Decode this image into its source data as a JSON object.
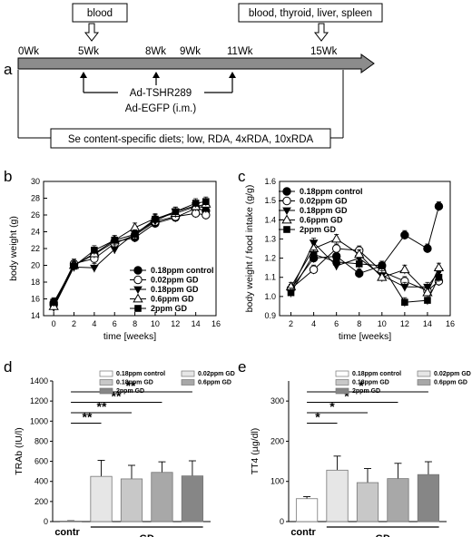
{
  "panels": {
    "a": "a",
    "b": "b",
    "c": "c",
    "d": "d",
    "e": "e"
  },
  "timeline": {
    "weeks": [
      "0Wk",
      "5Wk",
      "8Wk",
      "9Wk",
      "11Wk",
      "15Wk"
    ],
    "week_values": [
      0,
      5,
      8,
      9,
      11,
      15
    ],
    "box_blood": "blood",
    "box_tissues": "blood, thyroid, liver, spleen",
    "inj_line1": "Ad-TSHR289",
    "inj_line2": "Ad-EGFP (i.m.)",
    "diet": "Se content-specific diets; low, RDA, 4xRDA, 10xRDA"
  },
  "chart_data": [
    {
      "panel": "b",
      "type": "line",
      "xlabel": "time [weeks]",
      "ylabel": "body weight (g)",
      "xlim": [
        -1,
        16
      ],
      "ylim": [
        14,
        30
      ],
      "xticks": [
        0,
        2,
        4,
        6,
        8,
        10,
        12,
        14,
        16
      ],
      "yticks": [
        14,
        16,
        18,
        20,
        22,
        24,
        26,
        28,
        30
      ],
      "x": [
        0,
        2,
        4,
        6,
        8,
        10,
        12,
        14,
        15
      ],
      "series": [
        {
          "name": "0.18ppm control",
          "marker": "circle-filled",
          "values": [
            15.5,
            20.0,
            21.3,
            22.8,
            23.3,
            25.0,
            25.7,
            26.8,
            26.5
          ]
        },
        {
          "name": "0.02ppm GD",
          "marker": "circle-open",
          "values": [
            15.3,
            20.2,
            20.8,
            22.6,
            23.6,
            25.2,
            25.8,
            26.2,
            26.0
          ]
        },
        {
          "name": "0.18ppm GD",
          "marker": "triangle-down-filled",
          "values": [
            15.0,
            19.8,
            19.7,
            21.9,
            23.8,
            25.3,
            26.4,
            27.1,
            26.8
          ]
        },
        {
          "name": "0.6ppm GD",
          "marker": "triangle-up-open",
          "values": [
            15.1,
            20.0,
            21.4,
            23.0,
            24.5,
            25.6,
            26.2,
            27.0,
            27.3
          ]
        },
        {
          "name": "2ppm GD",
          "marker": "square-filled",
          "values": [
            15.6,
            19.9,
            21.8,
            23.0,
            23.7,
            25.5,
            26.4,
            27.4,
            27.6
          ]
        }
      ]
    },
    {
      "panel": "c",
      "type": "line",
      "xlabel": "time [weeks]",
      "ylabel": "body weight / food intake (g/g)",
      "xlim": [
        1,
        16
      ],
      "ylim": [
        0.9,
        1.6
      ],
      "xticks": [
        2,
        4,
        6,
        8,
        10,
        12,
        14,
        16
      ],
      "yticks": [
        0.9,
        1.0,
        1.1,
        1.2,
        1.3,
        1.4,
        1.5,
        1.6
      ],
      "x": [
        2,
        4,
        6,
        8,
        10,
        12,
        14,
        15
      ],
      "series": [
        {
          "name": "0.18ppm control",
          "marker": "circle-filled",
          "values": [
            1.04,
            1.2,
            1.21,
            1.12,
            1.16,
            1.32,
            1.25,
            1.47
          ]
        },
        {
          "name": "0.02ppm GD",
          "marker": "circle-open",
          "values": [
            1.04,
            1.14,
            1.25,
            1.24,
            1.13,
            1.08,
            1.03,
            1.08
          ]
        },
        {
          "name": "0.18ppm GD",
          "marker": "triangle-down-filled",
          "values": [
            1.03,
            1.28,
            1.16,
            1.2,
            1.11,
            1.05,
            1.05,
            1.13
          ]
        },
        {
          "name": "0.6ppm GD",
          "marker": "triangle-up-open",
          "values": [
            1.05,
            1.25,
            1.3,
            1.22,
            1.1,
            1.14,
            1.02,
            1.15
          ]
        },
        {
          "name": "2ppm GD",
          "marker": "square-filled",
          "values": [
            1.02,
            1.22,
            1.18,
            1.17,
            1.16,
            0.97,
            0.98,
            1.1
          ]
        }
      ]
    },
    {
      "panel": "d",
      "type": "bar",
      "ylabel": "TRAb (IU/l)",
      "ylim": [
        0,
        1400
      ],
      "yticks": [
        0,
        200,
        400,
        600,
        800,
        1000,
        1200,
        1400
      ],
      "categories": [
        "0.18ppm control",
        "0.02ppm GD",
        "0.18ppm GD",
        "0.6ppm GD",
        "2ppm GD"
      ],
      "values": [
        5,
        450,
        425,
        490,
        455
      ],
      "errors": [
        3,
        160,
        135,
        105,
        150
      ],
      "colors": [
        "#ffffff",
        "#e6e6e6",
        "#c8c8c8",
        "#a8a8a8",
        "#868686"
      ],
      "legend_order": [
        0,
        2,
        4,
        1,
        3
      ],
      "group_labels": {
        "contr": "contr",
        "gd": "GD"
      },
      "significance": [
        "**",
        "**",
        "**",
        "**"
      ]
    },
    {
      "panel": "e",
      "type": "bar",
      "ylabel": "TT4 (µg/dl)",
      "ylim": [
        0,
        350
      ],
      "yticks": [
        0,
        100,
        200,
        300
      ],
      "categories": [
        "0.18ppm control",
        "0.02ppm GD",
        "0.18ppm GD",
        "0.6ppm GD",
        "2ppm GD"
      ],
      "values": [
        57,
        128,
        97,
        107,
        117
      ],
      "errors": [
        5,
        35,
        35,
        38,
        32
      ],
      "colors": [
        "#ffffff",
        "#e6e6e6",
        "#c8c8c8",
        "#a8a8a8",
        "#868686"
      ],
      "legend_order": [
        0,
        2,
        4,
        1,
        3
      ],
      "group_labels": {
        "contr": "contr",
        "gd": "GD"
      },
      "significance": [
        "*",
        "*",
        "*",
        "*"
      ]
    }
  ]
}
